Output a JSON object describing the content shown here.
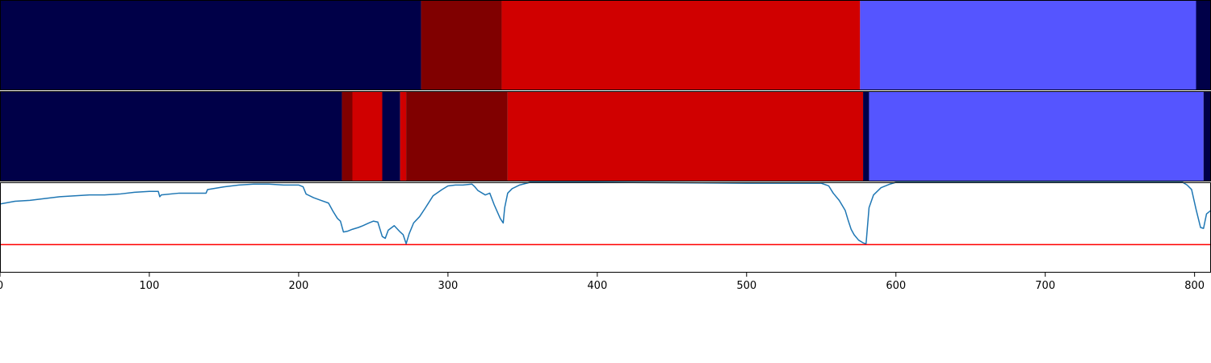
{
  "chart_data": [
    {
      "type": "segment-bar",
      "xlim": [
        0,
        811
      ],
      "segments": [
        {
          "start": 0,
          "end": 282,
          "color": "#000048"
        },
        {
          "start": 282,
          "end": 336,
          "color": "#800000"
        },
        {
          "start": 336,
          "end": 576,
          "color": "#d00000"
        },
        {
          "start": 576,
          "end": 801,
          "color": "#5555ff"
        },
        {
          "start": 801,
          "end": 811,
          "color": "#000048"
        }
      ]
    },
    {
      "type": "segment-bar",
      "xlim": [
        0,
        811
      ],
      "segments": [
        {
          "start": 0,
          "end": 229,
          "color": "#000048"
        },
        {
          "start": 229,
          "end": 236,
          "color": "#800000"
        },
        {
          "start": 236,
          "end": 256,
          "color": "#d00000"
        },
        {
          "start": 256,
          "end": 268,
          "color": "#000048"
        },
        {
          "start": 268,
          "end": 272,
          "color": "#d00000"
        },
        {
          "start": 272,
          "end": 340,
          "color": "#800000"
        },
        {
          "start": 340,
          "end": 578,
          "color": "#d00000"
        },
        {
          "start": 578,
          "end": 582,
          "color": "#000048"
        },
        {
          "start": 582,
          "end": 806,
          "color": "#5555ff"
        },
        {
          "start": 806,
          "end": 811,
          "color": "#000048"
        }
      ]
    },
    {
      "type": "line",
      "xlim": [
        0,
        811
      ],
      "ylim": [
        0,
        1
      ],
      "x_ticks": [
        "0",
        "100",
        "200",
        "300",
        "400",
        "500",
        "600",
        "700",
        "800"
      ],
      "x_tick_values": [
        0,
        100,
        200,
        300,
        400,
        500,
        600,
        700,
        800
      ],
      "line_color": "#1f77b4",
      "threshold": {
        "value": 0.31,
        "color": "#ff0000"
      },
      "x": [
        0,
        10,
        20,
        30,
        40,
        50,
        60,
        70,
        80,
        90,
        100,
        106,
        107,
        108,
        120,
        130,
        138,
        139,
        150,
        160,
        170,
        180,
        190,
        200,
        203,
        205,
        210,
        215,
        220,
        223,
        226,
        228,
        230,
        233,
        236,
        240,
        243,
        247,
        250,
        253,
        256,
        258,
        260,
        264,
        268,
        270,
        272,
        274,
        277,
        281,
        285,
        290,
        296,
        300,
        305,
        310,
        316,
        318,
        320,
        325,
        328,
        331,
        335,
        337,
        338,
        340,
        343,
        348,
        355,
        400,
        500,
        550,
        555,
        558,
        562,
        566,
        568,
        570,
        572,
        575,
        578,
        580,
        582,
        585,
        590,
        596,
        600,
        610,
        650,
        700,
        770,
        792,
        795,
        798,
        801,
        804,
        806,
        808,
        811
      ],
      "y": [
        0.76,
        0.79,
        0.8,
        0.82,
        0.84,
        0.85,
        0.86,
        0.86,
        0.87,
        0.89,
        0.9,
        0.9,
        0.84,
        0.86,
        0.88,
        0.88,
        0.88,
        0.92,
        0.95,
        0.97,
        0.98,
        0.98,
        0.97,
        0.97,
        0.95,
        0.87,
        0.83,
        0.8,
        0.77,
        0.68,
        0.6,
        0.57,
        0.45,
        0.46,
        0.48,
        0.5,
        0.52,
        0.55,
        0.57,
        0.56,
        0.4,
        0.38,
        0.47,
        0.52,
        0.45,
        0.42,
        0.32,
        0.43,
        0.55,
        0.62,
        0.72,
        0.85,
        0.92,
        0.96,
        0.97,
        0.97,
        0.98,
        0.95,
        0.91,
        0.86,
        0.88,
        0.75,
        0.6,
        0.55,
        0.72,
        0.88,
        0.93,
        0.97,
        1.0,
        1.0,
        0.99,
        0.99,
        0.96,
        0.88,
        0.8,
        0.69,
        0.58,
        0.48,
        0.42,
        0.36,
        0.33,
        0.32,
        0.72,
        0.86,
        0.94,
        0.98,
        1.0,
        1.0,
        1.0,
        1.0,
        1.0,
        1.0,
        0.97,
        0.92,
        0.7,
        0.5,
        0.49,
        0.65,
        0.69
      ]
    }
  ]
}
